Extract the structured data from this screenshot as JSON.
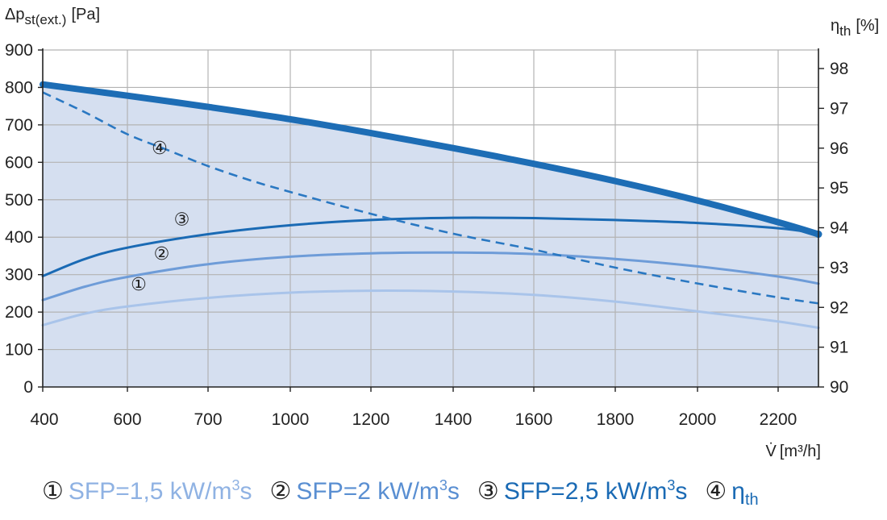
{
  "chart_data": {
    "type": "line",
    "ylabel": "Δp",
    "ylabel_sub": "st(ext.)",
    "ylabel_unit": "[Pa]",
    "y2label": "η",
    "y2label_sub": "th",
    "y2label_unit": "[%]",
    "xlabel_symbol": "V̇",
    "xlabel_unit": "[m³/h]",
    "xlim": [
      400,
      2300
    ],
    "ylim": [
      0,
      900
    ],
    "y2lim": [
      90,
      98.5
    ],
    "x_ticks": [
      "400",
      "600",
      "700",
      "1000",
      "1200",
      "1400",
      "1600",
      "1800",
      "2000",
      "2200"
    ],
    "y_ticks": [
      "0",
      "100",
      "200",
      "300",
      "400",
      "500",
      "600",
      "700",
      "800",
      "900"
    ],
    "y2_ticks": [
      "90",
      "91",
      "92",
      "93",
      "94",
      "95",
      "96",
      "97",
      "98"
    ],
    "grid": true,
    "series": [
      {
        "id": "max",
        "axis": "left",
        "x": [
          400,
          600,
          800,
          1000,
          1200,
          1400,
          1600,
          1800,
          2000,
          2200,
          2300
        ],
        "values": [
          808,
          778,
          748,
          715,
          678,
          638,
          596,
          550,
          498,
          440,
          408
        ],
        "color": "#1d6db5",
        "style": "thick"
      },
      {
        "id": "4",
        "axis": "right",
        "x": [
          400,
          500,
          600,
          700,
          800,
          900,
          1000,
          1200,
          1400,
          1600,
          1800,
          2000,
          2200,
          2300
        ],
        "values": [
          97.4,
          96.9,
          96.35,
          95.95,
          95.55,
          95.2,
          94.9,
          94.35,
          93.85,
          93.45,
          93.0,
          92.6,
          92.25,
          92.1
        ],
        "color": "#2a78c2",
        "style": "dashed"
      },
      {
        "id": "3",
        "axis": "left",
        "x": [
          400,
          500,
          600,
          800,
          1000,
          1200,
          1400,
          1600,
          1800,
          2000,
          2200,
          2300
        ],
        "values": [
          296,
          342,
          372,
          408,
          432,
          446,
          452,
          451,
          446,
          438,
          424,
          410
        ],
        "color": "#1a6ab4",
        "style": "solid"
      },
      {
        "id": "2",
        "axis": "left",
        "x": [
          400,
          500,
          600,
          800,
          1000,
          1200,
          1400,
          1600,
          1800,
          2000,
          2200,
          2300
        ],
        "values": [
          232,
          268,
          294,
          328,
          348,
          357,
          359,
          355,
          342,
          322,
          295,
          276
        ],
        "color": "#6e9cd8",
        "style": "solid"
      },
      {
        "id": "1",
        "axis": "left",
        "x": [
          400,
          500,
          600,
          800,
          1000,
          1200,
          1400,
          1600,
          1800,
          2000,
          2200,
          2300
        ],
        "values": [
          165,
          196,
          215,
          238,
          252,
          257,
          255,
          246,
          228,
          202,
          175,
          158
        ],
        "color": "#a9c4ea",
        "style": "solid"
      }
    ],
    "curve_labels": [
      {
        "text": "④",
        "x": 680,
        "y": 95.85,
        "axis": "right"
      },
      {
        "text": "③",
        "x": 735,
        "y": 432,
        "axis": "left"
      },
      {
        "text": "②",
        "x": 685,
        "y": 340,
        "axis": "left"
      },
      {
        "text": "①",
        "x": 628,
        "y": 258,
        "axis": "left"
      }
    ]
  },
  "legend": [
    {
      "num": "①",
      "label": "SFP=1,5 kW/m",
      "sup": "3",
      "tail": "s",
      "color": "#8fb2e3"
    },
    {
      "num": "②",
      "label": "SFP=2 kW/m",
      "sup": "3",
      "tail": "s",
      "color": "#5a8fd2"
    },
    {
      "num": "③",
      "label": "SFP=2,5 kW/m",
      "sup": "3",
      "tail": "s",
      "color": "#1a6ab4"
    },
    {
      "num": "④",
      "label": "η",
      "sub": "th",
      "color": "#1a6ab4"
    }
  ]
}
